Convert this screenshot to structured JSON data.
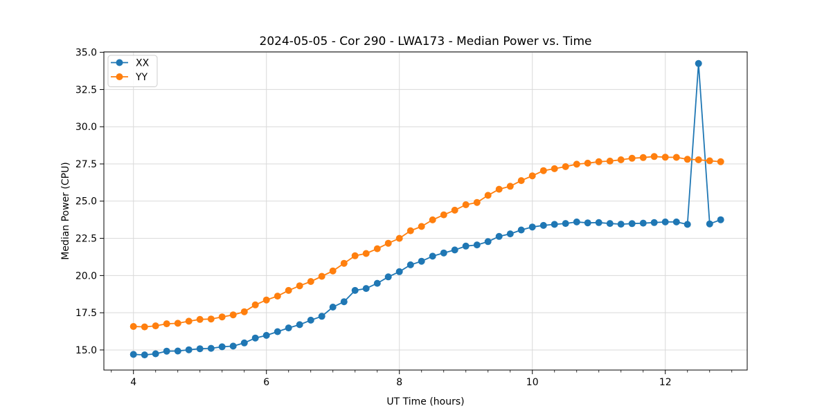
{
  "figure": {
    "title": "2024-05-05 - Cor 290 - LWA173 - Median Power vs. Time",
    "xlabel": "UT Time (hours)",
    "ylabel": "Median Power (CPU)"
  },
  "chart_data": {
    "type": "line",
    "title": "2024-05-05 - Cor 290 - LWA173 - Median Power vs. Time",
    "xlabel": "UT Time (hours)",
    "ylabel": "Median Power (CPU)",
    "x": [
      4.0,
      4.167,
      4.333,
      4.5,
      4.667,
      4.833,
      5.0,
      5.167,
      5.333,
      5.5,
      5.667,
      5.833,
      6.0,
      6.167,
      6.333,
      6.5,
      6.667,
      6.833,
      7.0,
      7.167,
      7.333,
      7.5,
      7.667,
      7.833,
      8.0,
      8.167,
      8.333,
      8.5,
      8.667,
      8.833,
      9.0,
      9.167,
      9.333,
      9.5,
      9.667,
      9.833,
      10.0,
      10.167,
      10.333,
      10.5,
      10.667,
      10.833,
      11.0,
      11.167,
      11.333,
      11.5,
      11.667,
      11.833,
      12.0,
      12.167,
      12.333,
      12.5,
      12.667,
      12.833
    ],
    "series": [
      {
        "name": "XX",
        "color": "#1f77b4",
        "values": [
          14.7,
          14.67,
          14.74,
          14.92,
          14.93,
          15.01,
          15.08,
          15.11,
          15.21,
          15.26,
          15.47,
          15.8,
          15.98,
          16.23,
          16.48,
          16.7,
          17.0,
          17.26,
          17.88,
          18.24,
          19.0,
          19.13,
          19.48,
          19.91,
          20.26,
          20.72,
          20.96,
          21.3,
          21.52,
          21.72,
          21.98,
          22.06,
          22.28,
          22.63,
          22.8,
          23.06,
          23.26,
          23.37,
          23.44,
          23.5,
          23.6,
          23.54,
          23.56,
          23.5,
          23.45,
          23.49,
          23.52,
          23.56,
          23.6,
          23.6,
          23.44,
          34.25,
          23.47,
          23.75
        ]
      },
      {
        "name": "YY",
        "color": "#ff7f0e",
        "values": [
          16.58,
          16.55,
          16.62,
          16.76,
          16.79,
          16.93,
          17.05,
          17.08,
          17.22,
          17.36,
          17.57,
          18.03,
          18.36,
          18.62,
          19.0,
          19.31,
          19.6,
          19.95,
          20.31,
          20.82,
          21.33,
          21.48,
          21.8,
          22.17,
          22.5,
          23.01,
          23.3,
          23.74,
          24.08,
          24.39,
          24.76,
          24.91,
          25.39,
          25.8,
          26.0,
          26.38,
          26.7,
          27.05,
          27.18,
          27.32,
          27.48,
          27.55,
          27.65,
          27.69,
          27.78,
          27.88,
          27.93,
          28.0,
          27.95,
          27.94,
          27.81,
          27.78,
          27.71,
          27.65
        ]
      }
    ],
    "xlim": [
      3.555,
      13.232
    ],
    "ylim": [
      13.65,
      35.03
    ],
    "xticks": [
      4,
      6,
      8,
      10,
      12
    ],
    "xtick_labels": [
      "4",
      "6",
      "8",
      "10",
      "12"
    ],
    "x_minor_tick_step": 0.3333,
    "x_minor_tick_range": [
      3.667,
      13.0
    ],
    "yticks": [
      15.0,
      17.5,
      20.0,
      22.5,
      25.0,
      27.5,
      30.0,
      32.5,
      35.0
    ],
    "ytick_labels": [
      "15.0",
      "17.5",
      "20.0",
      "22.5",
      "25.0",
      "27.5",
      "30.0",
      "32.5",
      "35.0"
    ],
    "grid": true,
    "legend": {
      "position": "upper left",
      "entries": [
        "XX",
        "YY"
      ]
    },
    "marker": "circle",
    "colors": {
      "grid": "#d9d9d9",
      "spine": "#000000",
      "text": "#000000",
      "legend_border": "#cccccc",
      "legend_bg": "#ffffff",
      "background": "#ffffff"
    }
  }
}
